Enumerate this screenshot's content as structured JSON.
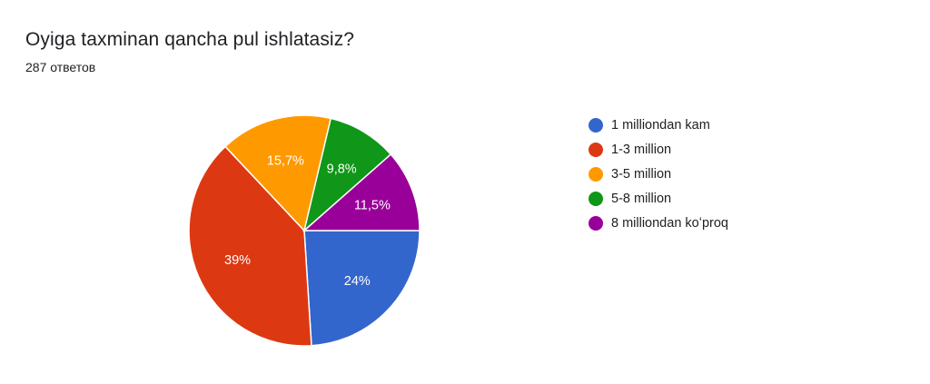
{
  "header": {
    "title": "Oyiga taxminan qancha pul ishlatasiz?",
    "responses": "287 ответов"
  },
  "chart_data": {
    "type": "pie",
    "title": "Oyiga taxminan qancha pul ishlatasiz?",
    "categories": [
      "1 milliondan kam",
      "1-3 million",
      "3-5 million",
      "5-8 million",
      "8 milliondan koʻproq"
    ],
    "values": [
      24,
      39,
      15.7,
      9.8,
      11.5
    ],
    "labels": [
      "24%",
      "39%",
      "15,7%",
      "9,8%",
      "11,5%"
    ],
    "colors": [
      "#3366cc",
      "#dc3912",
      "#ff9900",
      "#109618",
      "#990099"
    ],
    "legend": "right",
    "start": "3 o'clock, clockwise"
  }
}
